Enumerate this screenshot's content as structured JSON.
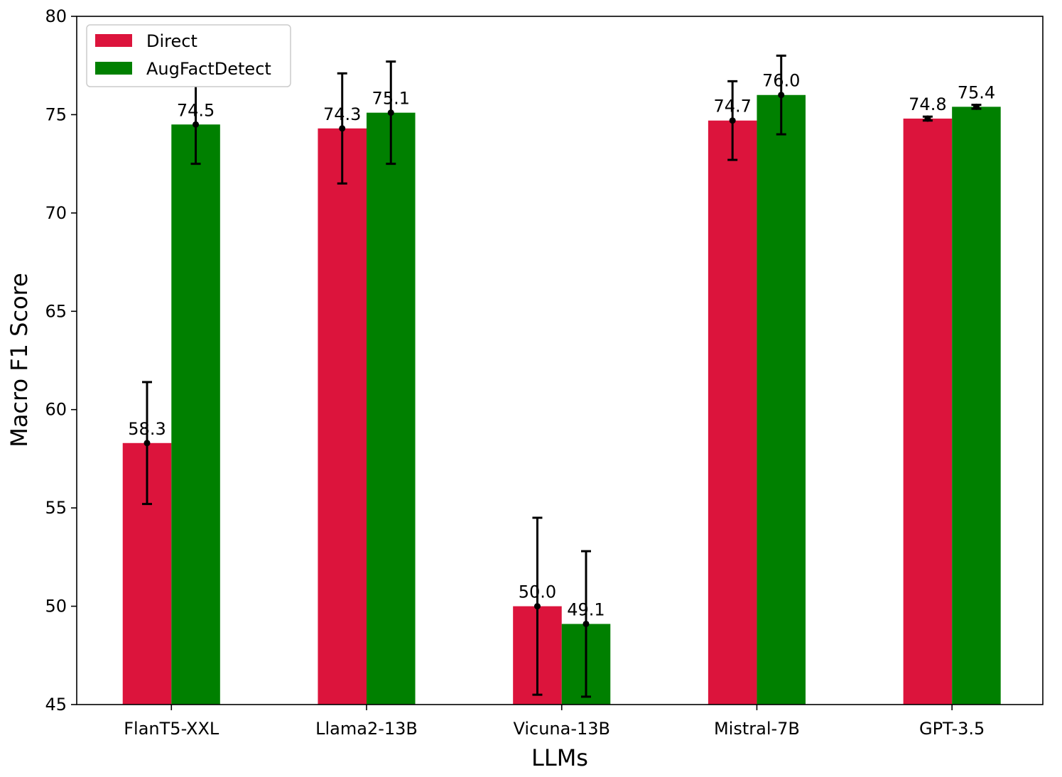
{
  "chart_data": {
    "type": "bar",
    "xlabel": "LLMs",
    "ylabel": "Macro F1 Score",
    "ylim": [
      45,
      80
    ],
    "yticks": [
      45,
      50,
      55,
      60,
      65,
      70,
      75,
      80
    ],
    "categories": [
      "FlanT5-XXL",
      "Llama2-13B",
      "Vicuna-13B",
      "Mistral-7B",
      "GPT-3.5"
    ],
    "series": [
      {
        "name": "Direct",
        "color": "#dc143c",
        "values": [
          58.3,
          74.3,
          50.0,
          74.7,
          74.8
        ],
        "labels": [
          "58.3",
          "74.3",
          "50.0",
          "74.7",
          "74.8"
        ],
        "errors": [
          3.1,
          2.8,
          4.5,
          2.0,
          0.1
        ]
      },
      {
        "name": "AugFactDetect",
        "color": "#008000",
        "values": [
          74.5,
          75.1,
          49.1,
          76.0,
          75.4
        ],
        "labels": [
          "74.5",
          "75.1",
          "49.1",
          "76.0",
          "75.4"
        ],
        "errors": [
          2.0,
          2.6,
          3.7,
          2.0,
          0.1
        ]
      }
    ],
    "legend_position": "top-left",
    "grid": false,
    "error_bars": true
  }
}
